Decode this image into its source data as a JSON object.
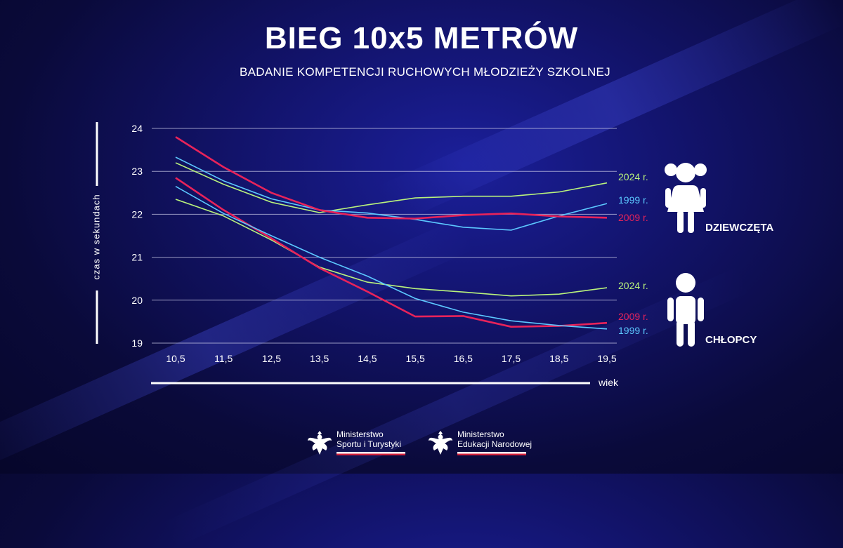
{
  "title": "BIEG 10x5 METRÓW",
  "subtitle": "BADANIE KOMPETENCJI RUCHOWYCH MŁODZIEŻY SZKOLNEJ",
  "groups": {
    "girls": "DZIEWCZĘTA",
    "boys": "CHŁOPCY"
  },
  "ministries": [
    {
      "line1": "Ministerstwo",
      "line2": "Sportu i Turystyki"
    },
    {
      "line1": "Ministerstwo",
      "line2": "Edukacji Narodowej"
    }
  ],
  "colors": {
    "series_2024": "#b9f27c",
    "series_1999": "#5cc8ff",
    "series_2009": "#e8235a",
    "grid": "#c8c8e6"
  },
  "chart_data": {
    "type": "line",
    "ylabel": "czas  w  sekundach",
    "xlabel": "wiek",
    "ylim": [
      19,
      24
    ],
    "yticks": [
      19,
      20,
      21,
      22,
      23,
      24
    ],
    "x": [
      "10,5",
      "11,5",
      "12,5",
      "13,5",
      "14,5",
      "15,5",
      "16,5",
      "17,5",
      "18,5",
      "19,5"
    ],
    "grid": true,
    "series": [
      {
        "name": "2024 r.",
        "group": "DZIEWCZĘTA",
        "color": "#b9f27c",
        "values": [
          23.2,
          22.7,
          22.28,
          22.04,
          22.22,
          22.38,
          22.42,
          22.42,
          22.52,
          22.73
        ]
      },
      {
        "name": "1999 r.",
        "group": "DZIEWCZĘTA",
        "color": "#5cc8ff",
        "values": [
          23.33,
          22.78,
          22.36,
          22.1,
          22.03,
          21.88,
          21.7,
          21.63,
          21.96,
          22.25
        ]
      },
      {
        "name": "2009 r.",
        "group": "DZIEWCZĘTA",
        "color": "#e8235a",
        "values": [
          23.8,
          23.1,
          22.5,
          22.1,
          21.92,
          21.9,
          21.98,
          22.02,
          21.95,
          21.92
        ]
      },
      {
        "name": "2024 r.",
        "group": "CHŁOPCY",
        "color": "#b9f27c",
        "values": [
          22.35,
          21.96,
          21.4,
          20.77,
          20.42,
          20.27,
          20.19,
          20.1,
          20.14,
          20.29
        ]
      },
      {
        "name": "2009 r.",
        "group": "CHŁOPCY",
        "color": "#e8235a",
        "values": [
          22.85,
          22.1,
          21.44,
          20.75,
          20.2,
          19.62,
          19.63,
          19.38,
          19.4,
          19.47
        ]
      },
      {
        "name": "1999 r.",
        "group": "CHŁOPCY",
        "color": "#5cc8ff",
        "values": [
          22.65,
          22.02,
          21.5,
          21.0,
          20.56,
          20.04,
          19.72,
          19.52,
          19.41,
          19.33
        ]
      }
    ]
  }
}
